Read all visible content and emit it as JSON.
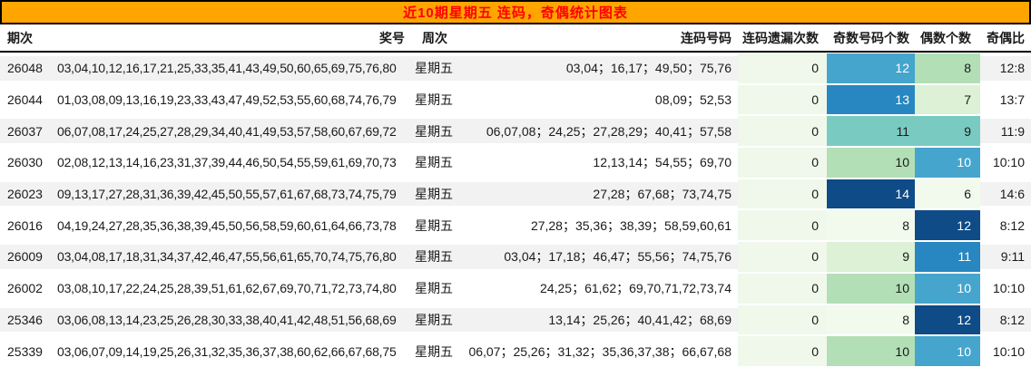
{
  "title_bar": {
    "text": "近10期星期五 连码，奇偶统计图表"
  },
  "colors": {
    "title_bg": "#FFA500",
    "title_text": "#FF0000",
    "stripe_gray": "#f2f2f2",
    "miss_cell_bg": "#eff8ea",
    "heat_palette": [
      "#f2faed",
      "#dcf1d5",
      "#b2dfb5",
      "#79cbc2",
      "#45a5cd",
      "#2887c0",
      "#0e4b87"
    ],
    "white_text_from_index": 4
  },
  "chart_data": {
    "type": "table",
    "title": "近10期星期五 连码，奇偶统计图表",
    "columns": [
      "期次",
      "奖号",
      "周次",
      "连码号码",
      "连码遗漏次数",
      "奇数号码个数",
      "偶数个数",
      "奇偶比"
    ],
    "rows": [
      [
        "26048",
        "03,04,10,12,16,17,21,25,33,35,41,43,49,50,60,65,69,75,76,80",
        "星期五",
        "03,04；16,17；49,50；75,76",
        "0",
        12,
        8,
        "12:8"
      ],
      [
        "26044",
        "01,03,08,09,13,16,19,23,33,43,47,49,52,53,55,60,68,74,76,79",
        "星期五",
        "08,09；52,53",
        "0",
        13,
        7,
        "13:7"
      ],
      [
        "26037",
        "06,07,08,17,24,25,27,28,29,34,40,41,49,53,57,58,60,67,69,72",
        "星期五",
        "06,07,08；24,25；27,28,29；40,41；57,58",
        "0",
        11,
        9,
        "11:9"
      ],
      [
        "26030",
        "02,08,12,13,14,16,23,31,37,39,44,46,50,54,55,59,61,69,70,73",
        "星期五",
        "12,13,14；54,55；69,70",
        "0",
        10,
        10,
        "10:10"
      ],
      [
        "26023",
        "09,13,17,27,28,31,36,39,42,45,50,55,57,61,67,68,73,74,75,79",
        "星期五",
        "27,28；67,68；73,74,75",
        "0",
        14,
        6,
        "14:6"
      ],
      [
        "26016",
        "04,19,24,27,28,35,36,38,39,45,50,56,58,59,60,61,64,66,73,78",
        "星期五",
        "27,28；35,36；38,39；58,59,60,61",
        "0",
        8,
        12,
        "8:12"
      ],
      [
        "26009",
        "03,04,08,17,18,31,34,37,42,46,47,55,56,61,65,70,74,75,76,80",
        "星期五",
        "03,04；17,18；46,47；55,56；74,75,76",
        "0",
        9,
        11,
        "9:11"
      ],
      [
        "26002",
        "03,08,10,17,22,24,25,28,39,51,61,62,67,69,70,71,72,73,74,80",
        "星期五",
        "24,25；61,62；69,70,71,72,73,74",
        "0",
        10,
        10,
        "10:10"
      ],
      [
        "25346",
        "03,06,08,13,14,23,25,26,28,30,33,38,40,41,42,48,51,56,68,69",
        "星期五",
        "13,14；25,26；40,41,42；68,69",
        "0",
        8,
        12,
        "8:12"
      ],
      [
        "25339",
        "03,06,07,09,14,19,25,26,31,32,35,36,37,38,60,62,66,67,68,75",
        "星期五",
        "06,07；25,26；31,32；35,36,37,38；66,67,68",
        "0",
        10,
        10,
        "10:10"
      ]
    ],
    "heatmap": {
      "heat_columns": [
        "连码遗漏次数",
        "奇数号码个数",
        "偶数个数"
      ],
      "odd_count_range": [
        8,
        14
      ],
      "even_count_range": [
        6,
        12
      ],
      "miss_values_all": 0,
      "legend": "darker blue = higher count, pale green = lower count (GnBu-style scale per column)"
    }
  }
}
